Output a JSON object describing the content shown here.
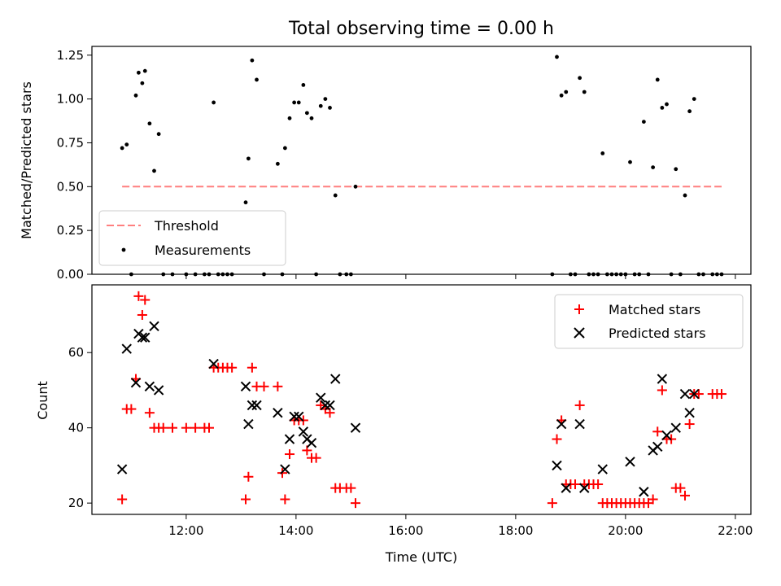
{
  "chart_data": [
    {
      "type": "scatter",
      "title": "Total observing time = 0.00 h",
      "xlabel": "",
      "ylabel": "Matched/Predicted stars",
      "xlim": [
        "10:17",
        "22:17"
      ],
      "ylim": [
        0,
        1.3
      ],
      "yticks": [
        "0.00",
        "0.25",
        "0.50",
        "0.75",
        "1.00",
        "1.25"
      ],
      "legend_position": "lower-left",
      "series": [
        {
          "name": "Threshold",
          "kind": "dashed-line",
          "color": "#ff7f7f",
          "x": [
            "10:50",
            "21:45"
          ],
          "y": [
            0.5,
            0.5
          ]
        },
        {
          "name": "Measurements",
          "kind": "points",
          "color": "#000000",
          "points": [
            [
              "10:50",
              0.72
            ],
            [
              "10:55",
              0.74
            ],
            [
              "11:00",
              0.0
            ],
            [
              "11:05",
              1.02
            ],
            [
              "11:08",
              1.15
            ],
            [
              "11:12",
              1.09
            ],
            [
              "11:15",
              1.16
            ],
            [
              "11:20",
              0.86
            ],
            [
              "11:25",
              0.59
            ],
            [
              "11:30",
              0.8
            ],
            [
              "11:35",
              0.0
            ],
            [
              "11:45",
              0.0
            ],
            [
              "12:00",
              0.0
            ],
            [
              "12:10",
              0.0
            ],
            [
              "12:20",
              0.0
            ],
            [
              "12:25",
              0.0
            ],
            [
              "12:30",
              0.98
            ],
            [
              "12:35",
              0.0
            ],
            [
              "12:40",
              0.0
            ],
            [
              "12:45",
              0.0
            ],
            [
              "12:50",
              0.0
            ],
            [
              "13:05",
              0.41
            ],
            [
              "13:08",
              0.66
            ],
            [
              "13:12",
              1.22
            ],
            [
              "13:17",
              1.11
            ],
            [
              "13:25",
              0.0
            ],
            [
              "13:40",
              0.63
            ],
            [
              "13:45",
              0.0
            ],
            [
              "13:48",
              0.72
            ],
            [
              "13:53",
              0.89
            ],
            [
              "13:58",
              0.98
            ],
            [
              "14:03",
              0.98
            ],
            [
              "14:08",
              1.08
            ],
            [
              "14:12",
              0.92
            ],
            [
              "14:17",
              0.89
            ],
            [
              "14:22",
              0.0
            ],
            [
              "14:27",
              0.96
            ],
            [
              "14:32",
              1.0
            ],
            [
              "14:37",
              0.95
            ],
            [
              "14:43",
              0.45
            ],
            [
              "14:48",
              0.0
            ],
            [
              "14:55",
              0.0
            ],
            [
              "15:00",
              0.0
            ],
            [
              "15:05",
              0.5
            ],
            [
              "18:40",
              0.0
            ],
            [
              "18:45",
              1.24
            ],
            [
              "18:50",
              1.02
            ],
            [
              "18:55",
              1.04
            ],
            [
              "19:00",
              0.0
            ],
            [
              "19:05",
              0.0
            ],
            [
              "19:10",
              1.12
            ],
            [
              "19:15",
              1.04
            ],
            [
              "19:20",
              0.0
            ],
            [
              "19:25",
              0.0
            ],
            [
              "19:30",
              0.0
            ],
            [
              "19:35",
              0.69
            ],
            [
              "19:40",
              0.0
            ],
            [
              "19:45",
              0.0
            ],
            [
              "19:50",
              0.0
            ],
            [
              "19:55",
              0.0
            ],
            [
              "20:00",
              0.0
            ],
            [
              "20:05",
              0.64
            ],
            [
              "20:10",
              0.0
            ],
            [
              "20:15",
              0.0
            ],
            [
              "20:20",
              0.87
            ],
            [
              "20:25",
              0.0
            ],
            [
              "20:30",
              0.61
            ],
            [
              "20:35",
              1.11
            ],
            [
              "20:40",
              0.95
            ],
            [
              "20:45",
              0.97
            ],
            [
              "20:50",
              0.0
            ],
            [
              "20:55",
              0.6
            ],
            [
              "21:00",
              0.0
            ],
            [
              "21:05",
              0.45
            ],
            [
              "21:10",
              0.93
            ],
            [
              "21:15",
              1.0
            ],
            [
              "21:20",
              0.0
            ],
            [
              "21:25",
              0.0
            ],
            [
              "21:35",
              0.0
            ],
            [
              "21:40",
              0.0
            ],
            [
              "21:45",
              0.0
            ]
          ]
        }
      ]
    },
    {
      "type": "scatter",
      "title": "",
      "xlabel": "Time (UTC)",
      "ylabel": "Count",
      "xlim": [
        "10:17",
        "22:17"
      ],
      "ylim": [
        17,
        78
      ],
      "xticks": [
        "12:00",
        "14:00",
        "16:00",
        "18:00",
        "20:00",
        "22:00"
      ],
      "yticks": [
        "20",
        "40",
        "60"
      ],
      "legend_position": "upper-right",
      "series": [
        {
          "name": "Matched stars",
          "marker": "plus",
          "color": "#ff0000",
          "points": [
            [
              "10:50",
              21
            ],
            [
              "10:55",
              45
            ],
            [
              "11:00",
              45
            ],
            [
              "11:05",
              53
            ],
            [
              "11:08",
              75
            ],
            [
              "11:12",
              70
            ],
            [
              "11:15",
              74
            ],
            [
              "11:20",
              44
            ],
            [
              "11:25",
              40
            ],
            [
              "11:30",
              40
            ],
            [
              "11:35",
              40
            ],
            [
              "11:45",
              40
            ],
            [
              "12:00",
              40
            ],
            [
              "12:10",
              40
            ],
            [
              "12:20",
              40
            ],
            [
              "12:25",
              40
            ],
            [
              "12:30",
              56
            ],
            [
              "12:35",
              56
            ],
            [
              "12:40",
              56
            ],
            [
              "12:45",
              56
            ],
            [
              "12:50",
              56
            ],
            [
              "13:05",
              21
            ],
            [
              "13:08",
              27
            ],
            [
              "13:12",
              56
            ],
            [
              "13:17",
              51
            ],
            [
              "13:25",
              51
            ],
            [
              "13:40",
              51
            ],
            [
              "13:45",
              28
            ],
            [
              "13:48",
              21
            ],
            [
              "13:53",
              33
            ],
            [
              "13:58",
              42
            ],
            [
              "14:03",
              42
            ],
            [
              "14:08",
              42
            ],
            [
              "14:12",
              34
            ],
            [
              "14:17",
              32
            ],
            [
              "14:22",
              32
            ],
            [
              "14:27",
              46
            ],
            [
              "14:32",
              45
            ],
            [
              "14:37",
              44
            ],
            [
              "14:43",
              24
            ],
            [
              "14:48",
              24
            ],
            [
              "14:55",
              24
            ],
            [
              "15:00",
              24
            ],
            [
              "15:05",
              20
            ],
            [
              "18:40",
              20
            ],
            [
              "18:45",
              37
            ],
            [
              "18:50",
              42
            ],
            [
              "18:55",
              25
            ],
            [
              "19:00",
              25
            ],
            [
              "19:05",
              25
            ],
            [
              "19:10",
              46
            ],
            [
              "19:15",
              25
            ],
            [
              "19:20",
              25
            ],
            [
              "19:25",
              25
            ],
            [
              "19:30",
              25
            ],
            [
              "19:35",
              20
            ],
            [
              "19:40",
              20
            ],
            [
              "19:45",
              20
            ],
            [
              "19:50",
              20
            ],
            [
              "19:55",
              20
            ],
            [
              "20:00",
              20
            ],
            [
              "20:05",
              20
            ],
            [
              "20:10",
              20
            ],
            [
              "20:15",
              20
            ],
            [
              "20:20",
              20
            ],
            [
              "20:25",
              20
            ],
            [
              "20:30",
              21
            ],
            [
              "20:35",
              39
            ],
            [
              "20:40",
              50
            ],
            [
              "20:45",
              37
            ],
            [
              "20:50",
              37
            ],
            [
              "20:55",
              24
            ],
            [
              "21:00",
              24
            ],
            [
              "21:05",
              22
            ],
            [
              "21:10",
              41
            ],
            [
              "21:15",
              49
            ],
            [
              "21:20",
              49
            ],
            [
              "21:35",
              49
            ],
            [
              "21:40",
              49
            ],
            [
              "21:45",
              49
            ]
          ]
        },
        {
          "name": "Predicted stars",
          "marker": "x",
          "color": "#000000",
          "points": [
            [
              "10:50",
              29
            ],
            [
              "10:55",
              61
            ],
            [
              "11:05",
              52
            ],
            [
              "11:08",
              65
            ],
            [
              "11:12",
              64
            ],
            [
              "11:15",
              64
            ],
            [
              "11:20",
              51
            ],
            [
              "11:25",
              67
            ],
            [
              "11:30",
              50
            ],
            [
              "12:30",
              57
            ],
            [
              "13:05",
              51
            ],
            [
              "13:08",
              41
            ],
            [
              "13:12",
              46
            ],
            [
              "13:17",
              46
            ],
            [
              "13:40",
              44
            ],
            [
              "13:48",
              29
            ],
            [
              "13:53",
              37
            ],
            [
              "13:58",
              43
            ],
            [
              "14:03",
              43
            ],
            [
              "14:08",
              39
            ],
            [
              "14:12",
              37
            ],
            [
              "14:17",
              36
            ],
            [
              "14:27",
              48
            ],
            [
              "14:32",
              46
            ],
            [
              "14:37",
              46
            ],
            [
              "14:43",
              53
            ],
            [
              "15:05",
              40
            ],
            [
              "18:45",
              30
            ],
            [
              "18:50",
              41
            ],
            [
              "18:55",
              24
            ],
            [
              "19:10",
              41
            ],
            [
              "19:15",
              24
            ],
            [
              "19:35",
              29
            ],
            [
              "20:05",
              31
            ],
            [
              "20:20",
              23
            ],
            [
              "20:30",
              34
            ],
            [
              "20:35",
              35
            ],
            [
              "20:40",
              53
            ],
            [
              "20:45",
              38
            ],
            [
              "20:55",
              40
            ],
            [
              "21:05",
              49
            ],
            [
              "21:10",
              44
            ],
            [
              "21:15",
              49
            ]
          ]
        }
      ]
    }
  ]
}
